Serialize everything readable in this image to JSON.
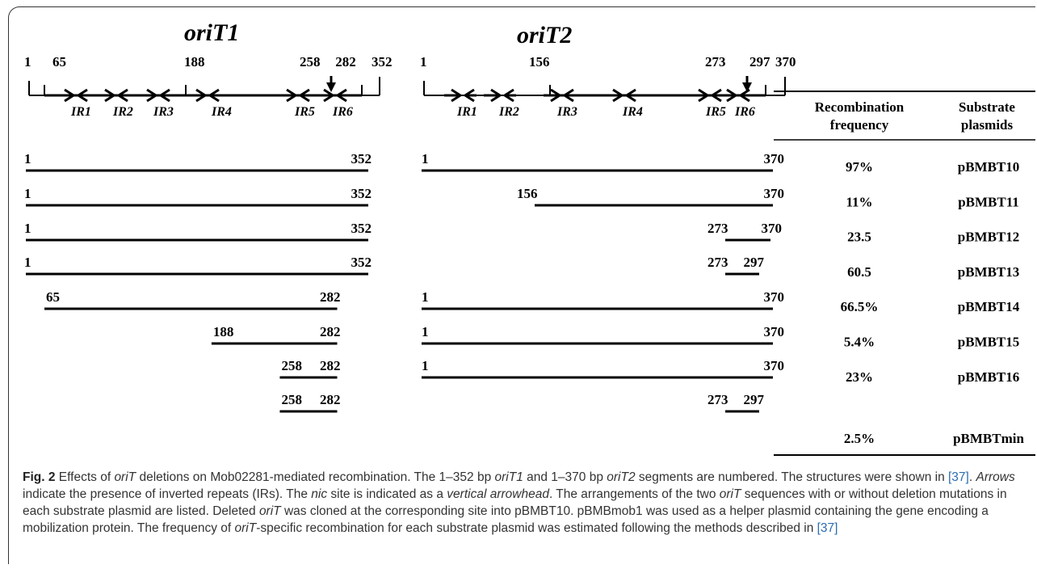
{
  "diagram": {
    "ori1": {
      "title": "oriT1",
      "positions": [
        {
          "label": "1",
          "bp": 1
        },
        {
          "label": "65",
          "bp": 65
        },
        {
          "label": "188",
          "bp": 188
        },
        {
          "label": "258",
          "bp": 258
        },
        {
          "label": "282",
          "bp": 282
        },
        {
          "label": "352",
          "bp": 352
        }
      ],
      "ir_labels": [
        "IR1",
        "IR2",
        "IR3",
        "IR4",
        "IR5",
        "IR6"
      ]
    },
    "ori2": {
      "title": "oriT2",
      "positions": [
        {
          "label": "1",
          "bp": 1
        },
        {
          "label": "156",
          "bp": 156
        },
        {
          "label": "273",
          "bp": 273
        },
        {
          "label": "297",
          "bp": 297
        },
        {
          "label": "370",
          "bp": 370
        }
      ],
      "ir_labels": [
        "IR1",
        "IR2",
        "IR3",
        "IR4",
        "IR5",
        "IR6"
      ]
    }
  },
  "table": {
    "header_freq_line1": "Recombination",
    "header_freq_line2": "frequency",
    "header_plasmid_line1": "Substrate",
    "header_plasmid_line2": "plasmids",
    "rows": [
      {
        "ori1": [
          "1",
          "352"
        ],
        "ori2": [
          "1",
          "370"
        ],
        "freq": "97%",
        "plasmid": "pBMBT10"
      },
      {
        "ori1": [
          "1",
          "352"
        ],
        "ori2": [
          "156",
          "370"
        ],
        "freq": "11%",
        "plasmid": "pBMBT11"
      },
      {
        "ori1": [
          "1",
          "352"
        ],
        "ori2": [
          "273",
          "370"
        ],
        "freq": "23.5",
        "plasmid": "pBMBT12"
      },
      {
        "ori1": [
          "1",
          "352"
        ],
        "ori2": [
          "273",
          "297"
        ],
        "freq": "60.5",
        "plasmid": "pBMBT13"
      },
      {
        "ori1": [
          "65",
          "282"
        ],
        "ori2": [
          "1",
          "370"
        ],
        "freq": "66.5%",
        "plasmid": "pBMBT14"
      },
      {
        "ori1": [
          "188",
          "282"
        ],
        "ori2": [
          "1",
          "370"
        ],
        "freq": "5.4%",
        "plasmid": "pBMBT15"
      },
      {
        "ori1": [
          "258",
          "282"
        ],
        "ori2": [
          "1",
          "370"
        ],
        "freq": "23%",
        "plasmid": "pBMBT16"
      },
      {
        "ori1": [
          "258",
          "282"
        ],
        "ori2": [
          "273",
          "297"
        ],
        "freq": "2.5%",
        "plasmid": "pBMBTmin"
      }
    ]
  },
  "caption": {
    "fig_label": "Fig. 2",
    "s1a": " Effects of ",
    "s1b": "oriT",
    "s1c": " deletions on Mob02281-mediated recombination. The 1–352 bp ",
    "s1d": "oriT1",
    "s1e": " and 1–370 bp ",
    "s1f": "oriT2",
    "s1g": " segments are numbered. The structures were shown in ",
    "ref_a": "[37]",
    "s2a": ". ",
    "s2b": "Arrows",
    "s2c": " indicate the presence of inverted repeats (IRs). The ",
    "s2d": "nic",
    "s2e": " site is indicated as a ",
    "s2f": "vertical arrowhead",
    "s2g": ". The arrangements of the two ",
    "s2h": "oriT",
    "s2i": " sequences with or without deletion mutations in each substrate plasmid are listed. Deleted ",
    "s2j": "oriT",
    "s2k": " was cloned at the corresponding site into pBMBT10. pBMBmob1 was used as a helper plasmid containing the gene encoding a mobilization protein. The frequency of ",
    "s2l": "oriT",
    "s2m": "-specific recombination for each substrate plasmid was estimated following the methods described in ",
    "ref_b": "[37]"
  }
}
